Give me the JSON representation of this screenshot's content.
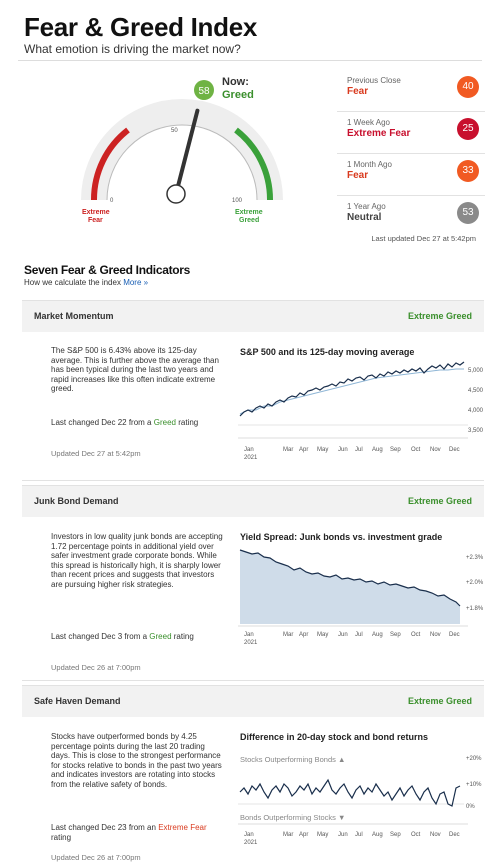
{
  "header": {
    "title": "Fear & Greed Index",
    "subtitle": "What emotion is driving the market now?"
  },
  "gauge": {
    "value": 58,
    "now_label": "Now:",
    "now_rating": "Greed",
    "tick_0": "0",
    "tick_50": "50",
    "tick_100": "100",
    "label_fear": "Extreme Fear",
    "label_greed": "Extreme Greed"
  },
  "history": [
    {
      "label": "Previous Close",
      "rating": "Fear",
      "value": "40",
      "color": "#f15a22"
    },
    {
      "label": "1 Week Ago",
      "rating": "Extreme Fear",
      "value": "25",
      "color": "#c8102e"
    },
    {
      "label": "1 Month Ago",
      "rating": "Fear",
      "value": "33",
      "color": "#f15a22"
    },
    {
      "label": "1 Year Ago",
      "rating": "Neutral",
      "value": "53",
      "color": "#8a8a8a"
    }
  ],
  "last_updated": "Last updated Dec 27 at 5:42pm",
  "indicators_section": {
    "title": "Seven Fear & Greed Indicators",
    "subtitle": "How we calculate the index",
    "more_link": "More »"
  },
  "indicators": [
    {
      "name": "Market Momentum",
      "rating": "Extreme Greed",
      "description": "The S&P 500 is 6.43% above its 125-day average. This is further above the average than has been typical during the last two years and rapid increases like this often indicate extreme greed.",
      "changed_prefix": "Last changed Dec 22 from a",
      "changed_rating": "Greed",
      "changed_suffix": "rating",
      "updated": "Updated Dec 27 at 5:42pm",
      "chart_title": "S&P 500 and its 125-day moving average",
      "y_ticks": [
        "5,000",
        "4,500",
        "4,000",
        "3,500"
      ]
    },
    {
      "name": "Junk Bond Demand",
      "rating": "Extreme Greed",
      "description": "Investors in low quality junk bonds are accepting 1.72 percentage points in additional yield over safer investment grade corporate bonds. While this spread is historically high, it is sharply lower than recent prices and suggests that investors are pursuing higher risk strategies.",
      "changed_prefix": "Last changed Dec 3 from a",
      "changed_rating": "Greed",
      "changed_suffix": "rating",
      "updated": "Updated Dec 26 at 7:00pm",
      "chart_title": "Yield Spread: Junk bonds vs. investment grade",
      "y_ticks": [
        "+2.3%",
        "+2.0%",
        "+1.8%"
      ]
    },
    {
      "name": "Safe Haven Demand",
      "rating": "Extreme Greed",
      "description": "Stocks have outperformed bonds by 4.25 percentage points during the last 20 trading days. This is close to the strongest performance for stocks relative to bonds in the past two years and indicates investors are rotating into stocks from the relative safety of bonds.",
      "changed_prefix": "Last changed Dec 23 from an",
      "changed_rating": "Extreme Fear",
      "changed_suffix": "rating",
      "updated": "Updated Dec 26 at 7:00pm",
      "chart_title": "Difference in 20-day stock and bond returns",
      "y_ticks": [
        "+20%",
        "+10%",
        "0%"
      ],
      "upper_label": "Stocks Outperforming Bonds ▲",
      "lower_label": "Bonds Outperforming Stocks ▼"
    }
  ],
  "x_axis": {
    "months": [
      "Jan",
      "Mar",
      "Apr",
      "May",
      "Jun",
      "Jul",
      "Aug",
      "Sep",
      "Oct",
      "Nov",
      "Dec"
    ],
    "year": "2021"
  }
}
